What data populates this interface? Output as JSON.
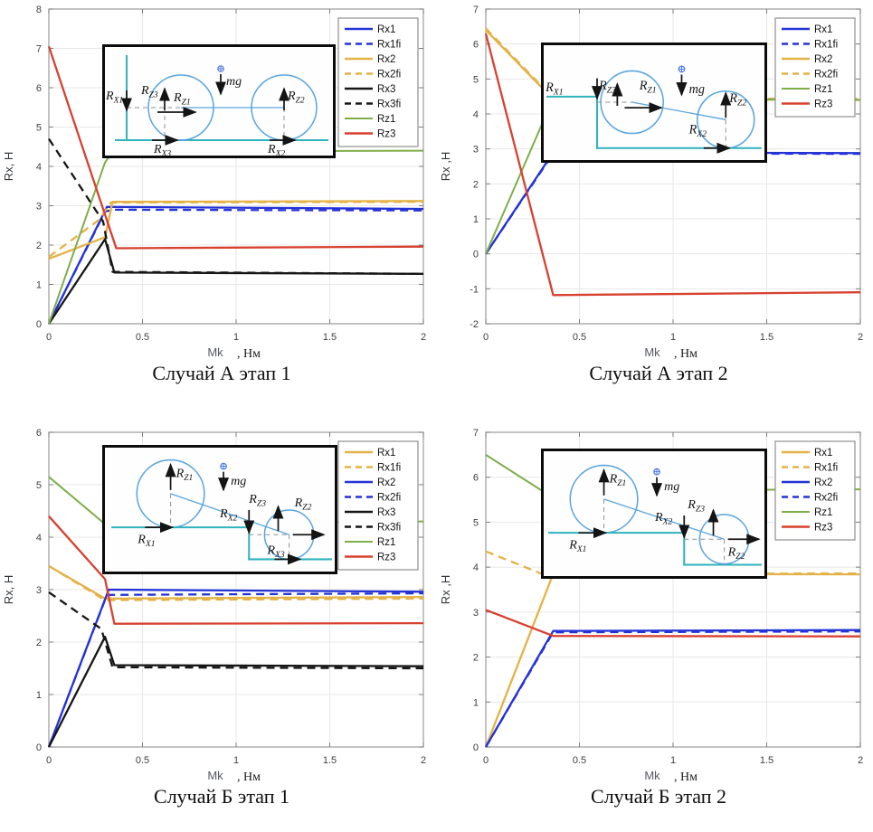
{
  "colors": {
    "blue": "#2433d6",
    "orange": "#e4b246",
    "green": "#7fae4a",
    "red": "#d8402f",
    "black": "#161616"
  },
  "chart_data": [
    {
      "type": "line",
      "caption": "Случай А этап 1",
      "xlabel": {
        "pre": "Mk",
        "post": ", Нм"
      },
      "ylabel": "Rx, Н",
      "xlim": [
        0,
        2
      ],
      "ylim": [
        0,
        8
      ],
      "xticks": [
        0,
        0.5,
        1,
        1.5,
        2
      ],
      "xtick_labels": [
        "0",
        "0.5",
        "1",
        "1.5",
        "2"
      ],
      "yticks": [
        0,
        1,
        2,
        3,
        4,
        5,
        6,
        7,
        8
      ],
      "grid": "on",
      "legend_position": "top-right",
      "series": [
        {
          "name": "Rx1",
          "color": "blue",
          "dash": false,
          "points": [
            [
              0,
              0
            ],
            [
              0.31,
              2.97
            ],
            [
              2,
              2.92
            ]
          ]
        },
        {
          "name": "Rx1fi",
          "color": "blue",
          "dash": true,
          "points": [
            [
              0,
              0
            ],
            [
              0.3,
              2.85
            ],
            [
              0.34,
              2.9
            ],
            [
              2,
              2.88
            ]
          ]
        },
        {
          "name": "Rx2",
          "color": "orange",
          "dash": false,
          "points": [
            [
              0,
              1.65
            ],
            [
              0.3,
              2.2
            ],
            [
              0.34,
              3.1
            ],
            [
              2,
              3.12
            ]
          ]
        },
        {
          "name": "Rx2fi",
          "color": "orange",
          "dash": true,
          "points": [
            [
              0,
              1.7
            ],
            [
              0.27,
              2.65
            ],
            [
              0.33,
              3.08
            ],
            [
              2,
              3.1
            ]
          ]
        },
        {
          "name": "Rx3",
          "color": "black",
          "dash": false,
          "points": [
            [
              0,
              0
            ],
            [
              0.3,
              2.15
            ],
            [
              0.35,
              1.3
            ],
            [
              2,
              1.27
            ]
          ]
        },
        {
          "name": "Rx3fi",
          "color": "black",
          "dash": true,
          "points": [
            [
              0,
              4.7
            ],
            [
              0.29,
              2.6
            ],
            [
              0.34,
              1.32
            ],
            [
              2,
              1.27
            ]
          ]
        },
        {
          "name": "Rz1",
          "color": "green",
          "dash": false,
          "points": [
            [
              0,
              0
            ],
            [
              0.3,
              4.1
            ],
            [
              0.34,
              4.38
            ],
            [
              2,
              4.4
            ]
          ]
        },
        {
          "name": "Rz3",
          "color": "red",
          "dash": false,
          "points": [
            [
              0,
              7.05
            ],
            [
              0.36,
              1.92
            ],
            [
              2,
              1.96
            ]
          ]
        }
      ],
      "inset": {
        "labels": [
          {
            "m": "R",
            "s": "X1"
          },
          {
            "m": "R",
            "s": "Z3"
          },
          {
            "m": "R",
            "s": "Z1"
          },
          {
            "m": "mg",
            "s": ""
          },
          {
            "m": "R",
            "s": "Z2"
          },
          {
            "m": "R",
            "s": "X3"
          },
          {
            "m": "R",
            "s": "X2"
          }
        ]
      }
    },
    {
      "type": "line",
      "caption": "Случай А этап 2",
      "xlabel": {
        "pre": "Mk",
        "post": ", Нм"
      },
      "ylabel": "Rx  ,Н",
      "xlim": [
        0,
        2
      ],
      "ylim": [
        -2,
        7
      ],
      "xticks": [
        0,
        0.5,
        1,
        1.5,
        2
      ],
      "xtick_labels": [
        "0",
        "0.5",
        "1",
        "1.5",
        "2"
      ],
      "yticks": [
        -2,
        -1,
        0,
        1,
        2,
        3,
        4,
        5,
        6,
        7
      ],
      "grid": "on",
      "legend_position": "top-right",
      "series": [
        {
          "name": "Rx1",
          "color": "blue",
          "dash": false,
          "points": [
            [
              0,
              0
            ],
            [
              0.36,
              2.9
            ],
            [
              2,
              2.88
            ]
          ]
        },
        {
          "name": "Rx1fi",
          "color": "blue",
          "dash": true,
          "points": [
            [
              0,
              0
            ],
            [
              0.36,
              2.87
            ],
            [
              2,
              2.86
            ]
          ]
        },
        {
          "name": "Rx2",
          "color": "orange",
          "dash": false,
          "points": [
            [
              0,
              6.4
            ],
            [
              0.36,
              4.42
            ],
            [
              2,
              4.4
            ]
          ]
        },
        {
          "name": "Rx2fi",
          "color": "orange",
          "dash": true,
          "points": [
            [
              0,
              6.45
            ],
            [
              0.36,
              4.45
            ],
            [
              2,
              4.43
            ]
          ]
        },
        {
          "name": "Rz1",
          "color": "green",
          "dash": false,
          "points": [
            [
              0,
              0
            ],
            [
              0.36,
              4.45
            ],
            [
              2,
              4.4
            ]
          ]
        },
        {
          "name": "Rz3",
          "color": "red",
          "dash": false,
          "points": [
            [
              0,
              6.3
            ],
            [
              0.36,
              -1.18
            ],
            [
              2,
              -1.1
            ]
          ]
        }
      ],
      "inset": {
        "labels": [
          {
            "m": "R",
            "s": "X1"
          },
          {
            "m": "R",
            "s": "Z3"
          },
          {
            "m": "R",
            "s": "Z1"
          },
          {
            "m": "mg",
            "s": ""
          },
          {
            "m": "R",
            "s": "Z2"
          },
          {
            "m": "R",
            "s": "X2"
          }
        ]
      }
    },
    {
      "type": "line",
      "caption": "Случай Б этап 1",
      "xlabel": {
        "pre": "Mk",
        "post": ", Нм"
      },
      "ylabel": "Rx, Н",
      "xlim": [
        0,
        2
      ],
      "ylim": [
        0,
        6
      ],
      "xticks": [
        0,
        0.5,
        1,
        1.5,
        2
      ],
      "xtick_labels": [
        "0",
        "0.5",
        "1",
        "1.5",
        "2"
      ],
      "yticks": [
        0,
        1,
        2,
        3,
        4,
        5,
        6
      ],
      "grid": "on",
      "legend_position": "top-right",
      "series": [
        {
          "name": "Rx1",
          "color": "orange",
          "dash": false,
          "points": [
            [
              0,
              3.45
            ],
            [
              0.3,
              2.83
            ],
            [
              2,
              2.86
            ]
          ]
        },
        {
          "name": "Rx1fi",
          "color": "orange",
          "dash": true,
          "points": [
            [
              0,
              3.45
            ],
            [
              0.3,
              2.8
            ],
            [
              2,
              2.83
            ]
          ]
        },
        {
          "name": "Rx2",
          "color": "blue",
          "dash": false,
          "points": [
            [
              0,
              0
            ],
            [
              0.32,
              3.0
            ],
            [
              2,
              2.96
            ]
          ]
        },
        {
          "name": "Rx2fi",
          "color": "blue",
          "dash": true,
          "points": [
            [
              0,
              0
            ],
            [
              0.31,
              2.9
            ],
            [
              2,
              2.93
            ]
          ]
        },
        {
          "name": "Rx3",
          "color": "black",
          "dash": false,
          "points": [
            [
              0,
              0
            ],
            [
              0.3,
              2.1
            ],
            [
              0.35,
              1.56
            ],
            [
              2,
              1.54
            ]
          ]
        },
        {
          "name": "Rx3fi",
          "color": "black",
          "dash": true,
          "points": [
            [
              0,
              2.95
            ],
            [
              0.28,
              2.25
            ],
            [
              0.34,
              1.52
            ],
            [
              2,
              1.5
            ]
          ]
        },
        {
          "name": "Rz1",
          "color": "green",
          "dash": false,
          "points": [
            [
              0,
              5.15
            ],
            [
              0.3,
              4.25
            ],
            [
              2,
              4.3
            ]
          ]
        },
        {
          "name": "Rz3",
          "color": "red",
          "dash": false,
          "points": [
            [
              0,
              4.4
            ],
            [
              0.3,
              3.2
            ],
            [
              0.35,
              2.35
            ],
            [
              2,
              2.36
            ]
          ]
        }
      ],
      "inset": {
        "labels": [
          {
            "m": "R",
            "s": "Z1"
          },
          {
            "m": "mg",
            "s": ""
          },
          {
            "m": "R",
            "s": "X1"
          },
          {
            "m": "R",
            "s": "X2"
          },
          {
            "m": "R",
            "s": "Z3"
          },
          {
            "m": "R",
            "s": "Z2"
          },
          {
            "m": "R",
            "s": "X3"
          }
        ]
      }
    },
    {
      "type": "line",
      "caption": "Случай Б этап 2",
      "xlabel": {
        "pre": "Mk",
        "post": ", Нм"
      },
      "ylabel": "Rx  ,Н",
      "xlim": [
        0,
        2
      ],
      "ylim": [
        0,
        7
      ],
      "xticks": [
        0,
        0.5,
        1,
        1.5,
        2
      ],
      "xtick_labels": [
        "0",
        "0.5",
        "1",
        "1.5",
        "2"
      ],
      "yticks": [
        0,
        1,
        2,
        3,
        4,
        5,
        6,
        7
      ],
      "grid": "on",
      "legend_position": "top-right",
      "series": [
        {
          "name": "Rx1",
          "color": "orange",
          "dash": false,
          "points": [
            [
              0,
              0
            ],
            [
              0.36,
              3.85
            ],
            [
              2,
              3.84
            ]
          ]
        },
        {
          "name": "Rx1fi",
          "color": "orange",
          "dash": true,
          "points": [
            [
              0,
              4.35
            ],
            [
              0.3,
              3.85
            ],
            [
              2,
              3.86
            ]
          ]
        },
        {
          "name": "Rx2",
          "color": "blue",
          "dash": false,
          "points": [
            [
              0,
              0
            ],
            [
              0.36,
              2.58
            ],
            [
              2,
              2.6
            ]
          ]
        },
        {
          "name": "Rx2fi",
          "color": "blue",
          "dash": true,
          "points": [
            [
              0,
              0
            ],
            [
              0.36,
              2.55
            ],
            [
              2,
              2.57
            ]
          ]
        },
        {
          "name": "Rz1",
          "color": "green",
          "dash": false,
          "points": [
            [
              0,
              6.5
            ],
            [
              0.3,
              5.7
            ],
            [
              2,
              5.73
            ]
          ]
        },
        {
          "name": "Rz3",
          "color": "red",
          "dash": false,
          "points": [
            [
              0,
              3.05
            ],
            [
              0.36,
              2.47
            ],
            [
              2,
              2.46
            ]
          ]
        }
      ],
      "inset": {
        "labels": [
          {
            "m": "R",
            "s": "Z1"
          },
          {
            "m": "mg",
            "s": ""
          },
          {
            "m": "R",
            "s": "X1"
          },
          {
            "m": "R",
            "s": "X2"
          },
          {
            "m": "R",
            "s": "Z3"
          },
          {
            "m": "R",
            "s": "Z2"
          }
        ]
      }
    }
  ]
}
